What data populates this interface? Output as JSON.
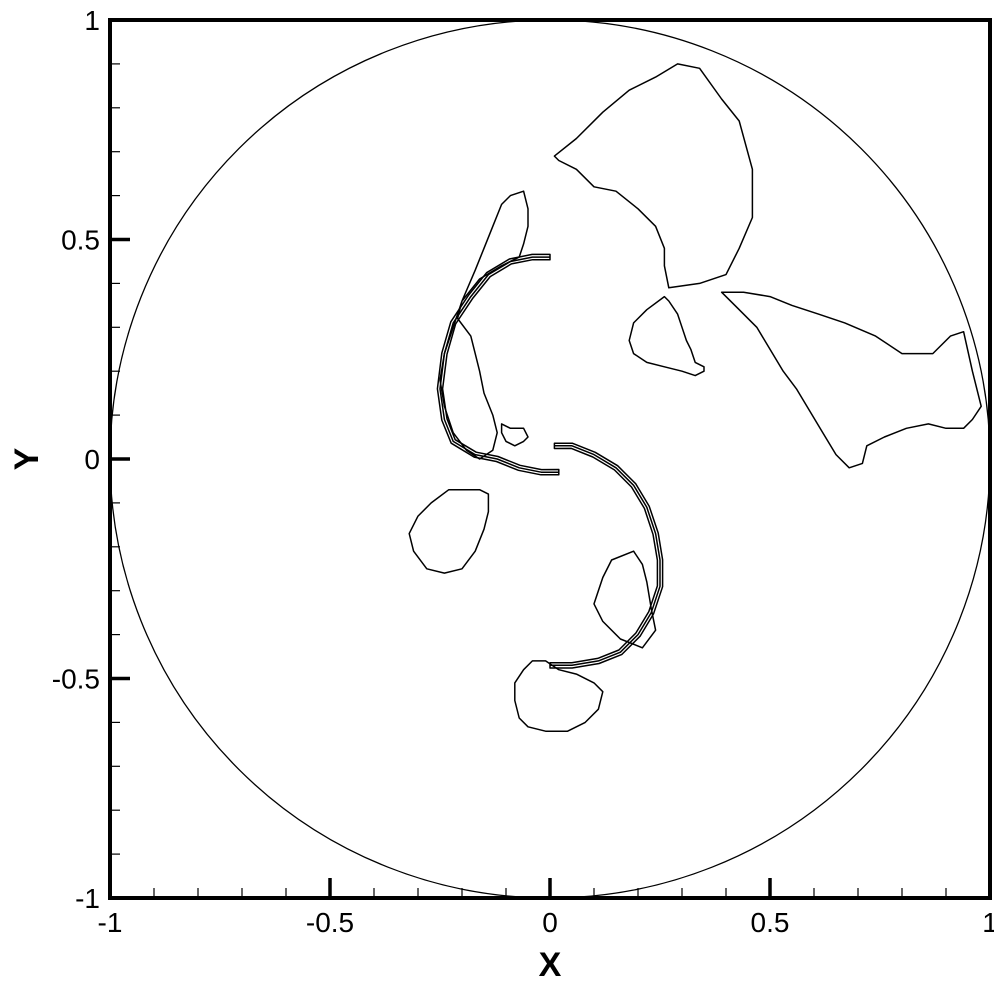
{
  "chart_data": {
    "type": "contour",
    "xlabel": "X",
    "ylabel": "Y",
    "xlim": [
      -1,
      1
    ],
    "ylim": [
      -1,
      1
    ],
    "grid": false,
    "x_major_ticks": [
      -1,
      -0.5,
      0,
      0.5,
      1
    ],
    "x_tick_labels": [
      "-1",
      "-0.5",
      "0",
      "0.5",
      "1"
    ],
    "y_major_ticks": [
      -1,
      -0.5,
      0,
      0.5,
      1
    ],
    "y_tick_labels": [
      "-1",
      "-0.5",
      "0",
      "0.5",
      "1"
    ],
    "minor_tick_step": 0.1,
    "boundary_circle": {
      "center": [
        0,
        0
      ],
      "radius": 1
    },
    "contours": [
      {
        "id": "upper-right-blob",
        "points": [
          [
            0.01,
            0.69
          ],
          [
            0.06,
            0.73
          ],
          [
            0.12,
            0.79
          ],
          [
            0.18,
            0.84
          ],
          [
            0.24,
            0.87
          ],
          [
            0.29,
            0.9
          ],
          [
            0.34,
            0.89
          ],
          [
            0.39,
            0.82
          ],
          [
            0.43,
            0.77
          ],
          [
            0.46,
            0.66
          ],
          [
            0.46,
            0.55
          ],
          [
            0.43,
            0.48
          ],
          [
            0.4,
            0.42
          ],
          [
            0.34,
            0.4
          ],
          [
            0.27,
            0.39
          ],
          [
            0.26,
            0.44
          ],
          [
            0.26,
            0.48
          ],
          [
            0.24,
            0.53
          ],
          [
            0.2,
            0.57
          ],
          [
            0.15,
            0.61
          ],
          [
            0.1,
            0.62
          ],
          [
            0.06,
            0.66
          ],
          [
            0.02,
            0.68
          ],
          [
            0.01,
            0.69
          ]
        ]
      },
      {
        "id": "middle-right-blob",
        "points": [
          [
            0.26,
            0.37
          ],
          [
            0.22,
            0.34
          ],
          [
            0.19,
            0.31
          ],
          [
            0.18,
            0.27
          ],
          [
            0.19,
            0.24
          ],
          [
            0.22,
            0.22
          ],
          [
            0.26,
            0.21
          ],
          [
            0.3,
            0.2
          ],
          [
            0.33,
            0.19
          ],
          [
            0.35,
            0.2
          ],
          [
            0.35,
            0.21
          ],
          [
            0.33,
            0.22
          ],
          [
            0.32,
            0.25
          ],
          [
            0.31,
            0.27
          ],
          [
            0.3,
            0.3
          ],
          [
            0.29,
            0.33
          ],
          [
            0.27,
            0.36
          ],
          [
            0.26,
            0.37
          ]
        ]
      },
      {
        "id": "far-right-blob",
        "points": [
          [
            0.39,
            0.38
          ],
          [
            0.43,
            0.34
          ],
          [
            0.47,
            0.3
          ],
          [
            0.5,
            0.25
          ],
          [
            0.53,
            0.2
          ],
          [
            0.56,
            0.16
          ],
          [
            0.59,
            0.11
          ],
          [
            0.62,
            0.06
          ],
          [
            0.65,
            0.01
          ],
          [
            0.68,
            -0.02
          ],
          [
            0.71,
            -0.01
          ],
          [
            0.72,
            0.03
          ],
          [
            0.76,
            0.05
          ],
          [
            0.81,
            0.07
          ],
          [
            0.86,
            0.08
          ],
          [
            0.9,
            0.07
          ],
          [
            0.94,
            0.07
          ],
          [
            0.96,
            0.09
          ],
          [
            0.98,
            0.12
          ],
          [
            0.96,
            0.2
          ],
          [
            0.94,
            0.29
          ],
          [
            0.91,
            0.28
          ],
          [
            0.87,
            0.24
          ],
          [
            0.8,
            0.24
          ],
          [
            0.74,
            0.28
          ],
          [
            0.67,
            0.31
          ],
          [
            0.61,
            0.33
          ],
          [
            0.55,
            0.35
          ],
          [
            0.5,
            0.37
          ],
          [
            0.44,
            0.38
          ],
          [
            0.39,
            0.38
          ]
        ]
      },
      {
        "id": "upper-left-blob",
        "points": [
          [
            -0.09,
            0.6
          ],
          [
            -0.06,
            0.61
          ],
          [
            -0.05,
            0.57
          ],
          [
            -0.05,
            0.53
          ],
          [
            -0.06,
            0.49
          ],
          [
            -0.07,
            0.46
          ],
          [
            -0.11,
            0.44
          ],
          [
            -0.16,
            0.41
          ],
          [
            -0.2,
            0.36
          ],
          [
            -0.21,
            0.32
          ],
          [
            -0.18,
            0.28
          ],
          [
            -0.17,
            0.24
          ],
          [
            -0.16,
            0.2
          ],
          [
            -0.15,
            0.15
          ],
          [
            -0.13,
            0.1
          ],
          [
            -0.12,
            0.06
          ],
          [
            -0.13,
            0.02
          ],
          [
            -0.16,
            0.0
          ],
          [
            -0.19,
            0.02
          ],
          [
            -0.22,
            0.06
          ],
          [
            -0.24,
            0.12
          ],
          [
            -0.25,
            0.18
          ],
          [
            -0.24,
            0.24
          ],
          [
            -0.22,
            0.3
          ],
          [
            -0.2,
            0.36
          ],
          [
            -0.17,
            0.43
          ],
          [
            -0.15,
            0.48
          ],
          [
            -0.13,
            0.53
          ],
          [
            -0.11,
            0.58
          ],
          [
            -0.09,
            0.6
          ]
        ]
      },
      {
        "id": "small-center-blob",
        "points": [
          [
            -0.11,
            0.08
          ],
          [
            -0.09,
            0.07
          ],
          [
            -0.06,
            0.07
          ],
          [
            -0.05,
            0.05
          ],
          [
            -0.06,
            0.04
          ],
          [
            -0.08,
            0.03
          ],
          [
            -0.1,
            0.04
          ],
          [
            -0.11,
            0.06
          ],
          [
            -0.11,
            0.08
          ]
        ]
      },
      {
        "id": "lower-right-blob",
        "points": [
          [
            0.14,
            -0.23
          ],
          [
            0.19,
            -0.21
          ],
          [
            0.21,
            -0.24
          ],
          [
            0.22,
            -0.28
          ],
          [
            0.23,
            -0.34
          ],
          [
            0.24,
            -0.39
          ],
          [
            0.21,
            -0.43
          ],
          [
            0.16,
            -0.41
          ],
          [
            0.12,
            -0.37
          ],
          [
            0.1,
            -0.33
          ],
          [
            0.12,
            -0.27
          ],
          [
            0.14,
            -0.23
          ]
        ]
      },
      {
        "id": "lower-left-blob",
        "points": [
          [
            -0.16,
            -0.07
          ],
          [
            -0.14,
            -0.08
          ],
          [
            -0.14,
            -0.12
          ],
          [
            -0.15,
            -0.16
          ],
          [
            -0.17,
            -0.21
          ],
          [
            -0.2,
            -0.25
          ],
          [
            -0.24,
            -0.26
          ],
          [
            -0.28,
            -0.25
          ],
          [
            -0.31,
            -0.21
          ],
          [
            -0.32,
            -0.17
          ],
          [
            -0.3,
            -0.13
          ],
          [
            -0.27,
            -0.1
          ],
          [
            -0.23,
            -0.07
          ],
          [
            -0.19,
            -0.07
          ],
          [
            -0.16,
            -0.07
          ]
        ]
      },
      {
        "id": "bottom-blob",
        "points": [
          [
            -0.04,
            -0.46
          ],
          [
            -0.01,
            -0.46
          ],
          [
            0.02,
            -0.48
          ],
          [
            0.06,
            -0.49
          ],
          [
            0.1,
            -0.51
          ],
          [
            0.12,
            -0.53
          ],
          [
            0.11,
            -0.57
          ],
          [
            0.08,
            -0.6
          ],
          [
            0.04,
            -0.62
          ],
          [
            -0.01,
            -0.62
          ],
          [
            -0.05,
            -0.61
          ],
          [
            -0.07,
            -0.59
          ],
          [
            -0.08,
            -0.55
          ],
          [
            -0.08,
            -0.51
          ],
          [
            -0.06,
            -0.48
          ],
          [
            -0.04,
            -0.46
          ]
        ]
      }
    ],
    "spiral_arms": [
      {
        "id": "upper-arm",
        "points": [
          [
            0.0,
            0.46
          ],
          [
            -0.04,
            0.46
          ],
          [
            -0.09,
            0.45
          ],
          [
            -0.14,
            0.42
          ],
          [
            -0.18,
            0.37
          ],
          [
            -0.22,
            0.31
          ],
          [
            -0.24,
            0.24
          ],
          [
            -0.25,
            0.16
          ],
          [
            -0.24,
            0.09
          ],
          [
            -0.22,
            0.04
          ],
          [
            -0.17,
            0.01
          ],
          [
            -0.12,
            0.0
          ],
          [
            -0.07,
            -0.02
          ],
          [
            -0.02,
            -0.03
          ],
          [
            0.02,
            -0.03
          ]
        ]
      },
      {
        "id": "lower-arm",
        "points": [
          [
            0.01,
            0.03
          ],
          [
            0.05,
            0.03
          ],
          [
            0.1,
            0.01
          ],
          [
            0.15,
            -0.02
          ],
          [
            0.19,
            -0.06
          ],
          [
            0.22,
            -0.11
          ],
          [
            0.24,
            -0.17
          ],
          [
            0.25,
            -0.23
          ],
          [
            0.25,
            -0.29
          ],
          [
            0.23,
            -0.35
          ],
          [
            0.2,
            -0.4
          ],
          [
            0.16,
            -0.44
          ],
          [
            0.11,
            -0.46
          ],
          [
            0.05,
            -0.47
          ],
          [
            0.0,
            -0.47
          ]
        ]
      }
    ]
  }
}
